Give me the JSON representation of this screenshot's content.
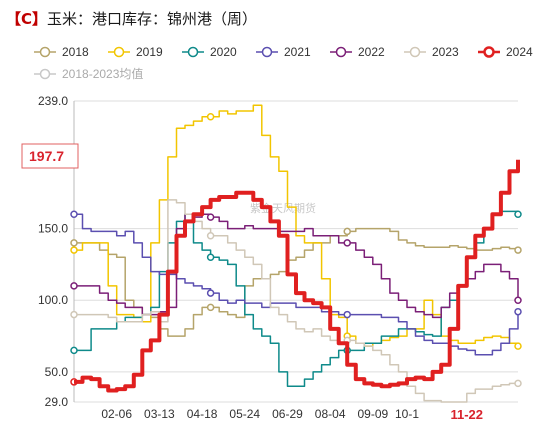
{
  "title": {
    "bracket": "【C】",
    "text": "玉米：港口库存：锦州港（周）"
  },
  "watermark": "紫金天风期货",
  "callout": "197.7",
  "x_highlight": "11-22",
  "colors": {
    "2018": "#b5a46a",
    "2019": "#f2c500",
    "2020": "#0e8a8a",
    "2021": "#5b4fb0",
    "2022": "#7b1f77",
    "2023": "#d0c7b7",
    "2024": "#e02020",
    "avg": "#c8c8c8"
  },
  "chart_data": {
    "type": "line",
    "title": "",
    "xlabel": "",
    "ylabel": "",
    "ylim": [
      29.0,
      239.0
    ],
    "yticks": [
      "239.0",
      "150.0",
      "100.0",
      "50.0",
      "29.0"
    ],
    "ytick_values": [
      239.0,
      150.0,
      100.0,
      50.0,
      29.0
    ],
    "xticks": [
      "02-06",
      "03-13",
      "04-18",
      "05-24",
      "06-29",
      "08-04",
      "09-09",
      "10-1"
    ],
    "xtick_weeks": [
      5,
      10,
      15,
      20,
      25,
      30,
      35,
      39
    ],
    "x_highlight_week": 46,
    "weeks": 53,
    "grid": true,
    "legend_position": "top",
    "series": [
      {
        "name": "2018",
        "values": [
          140,
          140,
          140,
          135,
          132,
          130,
          100,
          95,
          90,
          88,
          80,
          75,
          75,
          80,
          90,
          95,
          95,
          92,
          90,
          88,
          110,
          115,
          115,
          118,
          120,
          128,
          130,
          135,
          140,
          140,
          145,
          145,
          148,
          150,
          150,
          150,
          150,
          148,
          142,
          140,
          138,
          137,
          137,
          137,
          138,
          137,
          136,
          135,
          135,
          136,
          137,
          136,
          135
        ]
      },
      {
        "name": "2019",
        "values": [
          135,
          140,
          140,
          140,
          110,
          90,
          90,
          88,
          85,
          140,
          170,
          200,
          220,
          222,
          225,
          228,
          228,
          232,
          230,
          232,
          232,
          236,
          215,
          200,
          190,
          165,
          145,
          140,
          140,
          115,
          90,
          88,
          75,
          70,
          68,
          70,
          72,
          74,
          75,
          80,
          80,
          100,
          90,
          75,
          72,
          70,
          70,
          72,
          74,
          75,
          74,
          70,
          68
        ]
      },
      {
        "name": "2020",
        "values": [
          65,
          65,
          80,
          80,
          80,
          85,
          88,
          88,
          90,
          95,
          120,
          140,
          155,
          160,
          140,
          135,
          130,
          128,
          125,
          110,
          90,
          80,
          75,
          70,
          50,
          40,
          40,
          45,
          50,
          55,
          60,
          65,
          65,
          65,
          70,
          70,
          75,
          75,
          80,
          80,
          78,
          76,
          75,
          95,
          100,
          110,
          130,
          140,
          150,
          160,
          162,
          162,
          160
        ]
      },
      {
        "name": "2021",
        "values": [
          160,
          150,
          148,
          148,
          148,
          145,
          148,
          140,
          130,
          120,
          118,
          118,
          115,
          112,
          110,
          108,
          105,
          100,
          98,
          100,
          98,
          98,
          95,
          98,
          98,
          98,
          95,
          95,
          95,
          92,
          92,
          90,
          90,
          90,
          90,
          90,
          88,
          88,
          85,
          80,
          75,
          72,
          70,
          70,
          68,
          66,
          65,
          62,
          62,
          65,
          70,
          80,
          92
        ]
      },
      {
        "name": "2022",
        "values": [
          110,
          110,
          110,
          105,
          100,
          98,
          95,
          95,
          90,
          90,
          92,
          95,
          150,
          160,
          158,
          160,
          158,
          155,
          150,
          150,
          152,
          150,
          150,
          150,
          148,
          148,
          148,
          150,
          145,
          145,
          145,
          140,
          140,
          135,
          130,
          125,
          115,
          105,
          100,
          95,
          92,
          90,
          88,
          95,
          105,
          110,
          115,
          120,
          125,
          125,
          120,
          115,
          100
        ]
      },
      {
        "name": "2023",
        "values": [
          90,
          90,
          90,
          90,
          88,
          85,
          85,
          85,
          90,
          92,
          85,
          170,
          168,
          160,
          155,
          150,
          145,
          145,
          140,
          135,
          130,
          125,
          115,
          95,
          90,
          85,
          80,
          78,
          80,
          75,
          72,
          70,
          72,
          70,
          68,
          65,
          62,
          55,
          50,
          40,
          35,
          30,
          30,
          29,
          29,
          29,
          35,
          38,
          38,
          40,
          41,
          42,
          42
        ]
      },
      {
        "name": "2024",
        "values": [
          43,
          46,
          45,
          40,
          37,
          38,
          40,
          48,
          65,
          72,
          90,
          120,
          145,
          155,
          160,
          165,
          170,
          172,
          172,
          175,
          175,
          170,
          165,
          155,
          145,
          118,
          105,
          100,
          98,
          95,
          80,
          70,
          55,
          45,
          42,
          41,
          40,
          41,
          42,
          45,
          46,
          45,
          50,
          55,
          80,
          110,
          130,
          145,
          150,
          160,
          175,
          190,
          198
        ]
      }
    ],
    "legend_muted_series": "2018-2023均值"
  }
}
